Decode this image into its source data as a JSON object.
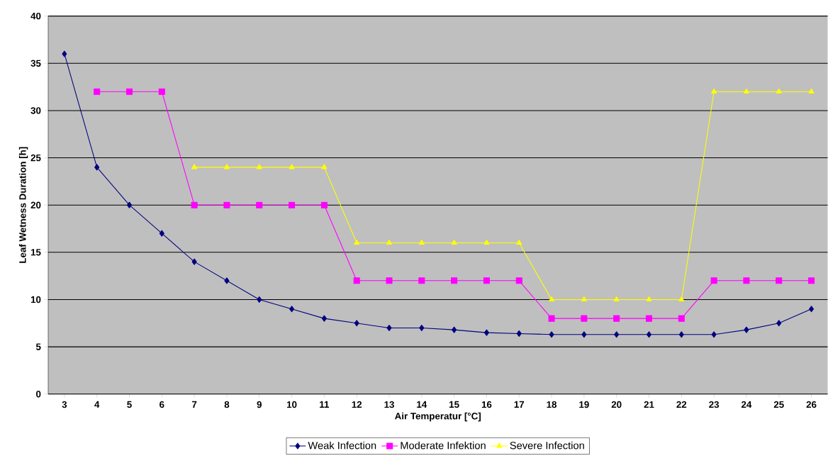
{
  "chart_data": {
    "type": "line",
    "xlabel": "Air Temperatur [°C]",
    "ylabel": "Leaf Wetness Duration [h]",
    "categories": [
      "3",
      "4",
      "5",
      "6",
      "7",
      "8",
      "9",
      "10",
      "11",
      "12",
      "13",
      "14",
      "15",
      "16",
      "17",
      "18",
      "19",
      "20",
      "21",
      "22",
      "23",
      "24",
      "25",
      "26"
    ],
    "series": [
      {
        "name": "Weak Infection",
        "color": "#000080",
        "marker": "diamond",
        "values": [
          36,
          24,
          20,
          17,
          14,
          12,
          10,
          9,
          8,
          7.5,
          7,
          7,
          6.8,
          6.5,
          6.4,
          6.3,
          6.3,
          6.3,
          6.3,
          6.3,
          6.3,
          6.8,
          7.5,
          9
        ]
      },
      {
        "name": "Moderate Infektion",
        "color": "#ff00ff",
        "marker": "square",
        "values": [
          null,
          32,
          32,
          32,
          20,
          20,
          20,
          20,
          20,
          12,
          12,
          12,
          12,
          12,
          12,
          8,
          8,
          8,
          8,
          8,
          12,
          12,
          12,
          12
        ]
      },
      {
        "name": "Severe Infection",
        "color": "#ffff00",
        "marker": "triangle",
        "values": [
          null,
          null,
          null,
          null,
          24,
          24,
          24,
          24,
          24,
          16,
          16,
          16,
          16,
          16,
          16,
          10,
          10,
          10,
          10,
          10,
          32,
          32,
          32,
          32
        ]
      }
    ],
    "ylim": [
      0,
      40
    ],
    "yticks": [
      0,
      5,
      10,
      15,
      20,
      25,
      30,
      35,
      40
    ],
    "grid": "y",
    "legend": "bottom",
    "line_style": "solid"
  }
}
